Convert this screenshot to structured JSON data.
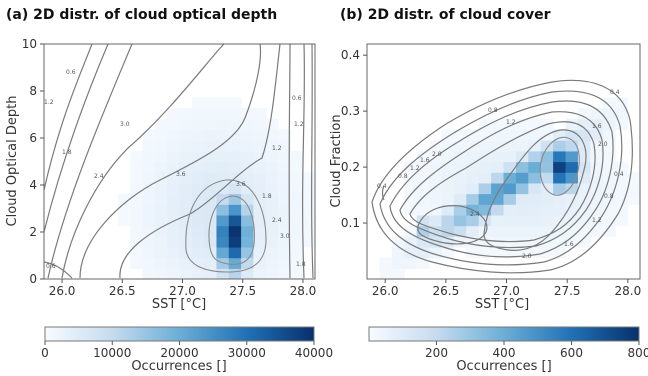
{
  "chart_data": [
    {
      "type": "heatmap",
      "title": "(a) 2D distr. of cloud optical depth",
      "xlabel": "SST [°C]",
      "ylabel": "Cloud Optical Depth",
      "xlim": [
        25.85,
        28.1
      ],
      "ylim": [
        0,
        10
      ],
      "xticks": [
        "26.0",
        "26.5",
        "27.0",
        "27.5",
        "28.0"
      ],
      "yticks": [
        "0",
        "2",
        "4",
        "6",
        "8",
        "10"
      ],
      "colorbar": {
        "label": "Occurrences []",
        "range": [
          0,
          40000
        ],
        "ticks": [
          "0",
          "10000",
          "20000",
          "30000",
          "40000"
        ]
      },
      "contour_labels": [
        "0.6",
        "1.2",
        "1.8",
        "2.4",
        "3.0",
        "3.6",
        "1.2",
        "1.8",
        "2.4",
        "3.0",
        "3.6",
        "0.6",
        "1.2",
        "1.8",
        "0.6"
      ],
      "peak": {
        "x": 27.42,
        "y": 1.9,
        "value": 40000
      },
      "colors": {
        "low": "#f7fbff",
        "high": "#08306b"
      }
    },
    {
      "type": "heatmap",
      "title": "(b) 2D distr. of cloud cover",
      "xlabel": "SST [°C]",
      "ylabel": "Cloud Fraction",
      "xlim": [
        25.85,
        28.1
      ],
      "ylim": [
        0,
        0.42
      ],
      "xticks": [
        "26.0",
        "26.5",
        "27.0",
        "27.5",
        "28.0"
      ],
      "yticks": [
        "0.1",
        "0.2",
        "0.3",
        "0.4"
      ],
      "colorbar": {
        "label": "Occurrences []",
        "range": [
          0,
          800
        ],
        "ticks": [
          "200",
          "400",
          "600",
          "800"
        ]
      },
      "contour_labels": [
        "0.4",
        "0.8",
        "1.2",
        "1.6",
        "2.0",
        "0.4",
        "0.8",
        "1.2",
        "1.6",
        "2.0",
        "2.4",
        "0.4",
        "0.8",
        "1.2",
        "1.6",
        "2.0"
      ],
      "peak": {
        "x": 27.47,
        "y": 0.2,
        "value": 800
      },
      "colors": {
        "low": "#f7fbff",
        "high": "#08306b"
      }
    }
  ]
}
